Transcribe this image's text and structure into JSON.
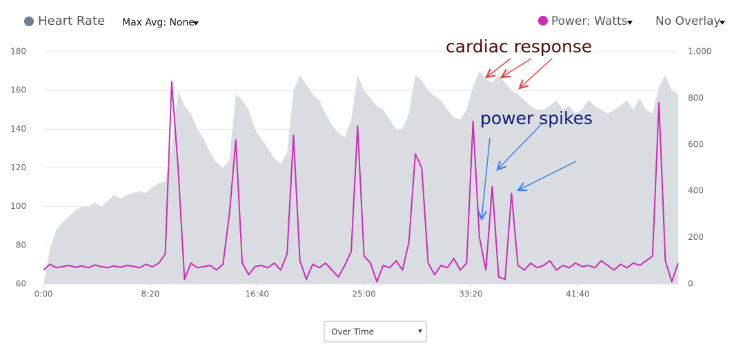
{
  "chart_data": {
    "type": "combo",
    "x": [
      0,
      30,
      60,
      90,
      120,
      150,
      180,
      210,
      240,
      270,
      300,
      330,
      360,
      390,
      420,
      450,
      480,
      510,
      540,
      570,
      600,
      630,
      660,
      690,
      720,
      750,
      780,
      810,
      840,
      870,
      900,
      930,
      960,
      990,
      1020,
      1050,
      1080,
      1110,
      1140,
      1170,
      1200,
      1230,
      1260,
      1290,
      1320,
      1350,
      1380,
      1410,
      1440,
      1470,
      1500,
      1530,
      1560,
      1590,
      1620,
      1650,
      1680,
      1710,
      1740,
      1770,
      1800,
      1830,
      1860,
      1890,
      1920,
      1950,
      1980,
      2010,
      2040,
      2070,
      2100,
      2130,
      2160,
      2190,
      2220,
      2250,
      2280,
      2310,
      2340,
      2370,
      2400,
      2430,
      2460,
      2490,
      2520,
      2550,
      2580,
      2610,
      2640,
      2670,
      2700,
      2730,
      2760,
      2790,
      2820,
      2850,
      2880,
      2910,
      2940,
      2970
    ],
    "series": [
      {
        "name": "Heart Rate",
        "type": "area",
        "axis": "y",
        "color": "#6d7e8f",
        "fill": "#d9dde1",
        "values": [
          60,
          78,
          88,
          92,
          95,
          98,
          100,
          100,
          102,
          100,
          103,
          106,
          104,
          106,
          107,
          108,
          107,
          110,
          112,
          113,
          130,
          160,
          152,
          148,
          140,
          135,
          128,
          123,
          120,
          124,
          158,
          155,
          150,
          140,
          135,
          130,
          125,
          122,
          128,
          160,
          168,
          163,
          158,
          155,
          148,
          142,
          138,
          136,
          145,
          168,
          160,
          156,
          152,
          150,
          145,
          140,
          140,
          148,
          168,
          165,
          160,
          157,
          155,
          150,
          146,
          145,
          150,
          162,
          170,
          166,
          164,
          168,
          164,
          160,
          158,
          155,
          152,
          150,
          150,
          152,
          155,
          150,
          152,
          148,
          150,
          155,
          152,
          150,
          148,
          150,
          152,
          155,
          150,
          156,
          150,
          148,
          162,
          168,
          160,
          158
        ]
      },
      {
        "name": "Power: Watts",
        "type": "line",
        "axis": "y2",
        "color": "#cc2bb6",
        "values": [
          60,
          85,
          70,
          75,
          80,
          72,
          78,
          70,
          82,
          75,
          70,
          78,
          72,
          80,
          76,
          70,
          85,
          74,
          90,
          130,
          870,
          500,
          20,
          90,
          70,
          75,
          80,
          60,
          85,
          300,
          620,
          90,
          40,
          75,
          80,
          70,
          90,
          60,
          130,
          640,
          100,
          20,
          85,
          70,
          90,
          60,
          30,
          80,
          140,
          680,
          120,
          90,
          10,
          80,
          70,
          100,
          60,
          180,
          560,
          500,
          90,
          40,
          80,
          70,
          110,
          60,
          90,
          700,
          200,
          60,
          420,
          30,
          20,
          390,
          80,
          60,
          90,
          70,
          80,
          100,
          60,
          80,
          70,
          90,
          75,
          80,
          70,
          100,
          80,
          60,
          85,
          70,
          90,
          80,
          100,
          120,
          780,
          100,
          10,
          90
        ]
      }
    ],
    "xlim": [
      0,
      2970
    ],
    "xticks": [
      {
        "value": 0,
        "label": "0:00"
      },
      {
        "value": 500,
        "label": "8:20"
      },
      {
        "value": 1000,
        "label": "16:40"
      },
      {
        "value": 1500,
        "label": "25:00"
      },
      {
        "value": 2000,
        "label": "33:20"
      },
      {
        "value": 2500,
        "label": "41:40"
      }
    ],
    "ylim": [
      60,
      180
    ],
    "yticks": [
      60,
      80,
      100,
      120,
      140,
      160,
      180
    ],
    "y2lim": [
      0,
      1000
    ],
    "y2ticks": [
      0,
      200,
      400,
      600,
      800,
      {
        "value": 1000,
        "label": "1.000"
      }
    ],
    "grid": true,
    "annotations": [
      "cardiac response",
      "power spikes"
    ],
    "controls": {
      "max_avg": "Max Avg: None",
      "overlay": "No Overlay",
      "view_select": "Over Time"
    }
  }
}
